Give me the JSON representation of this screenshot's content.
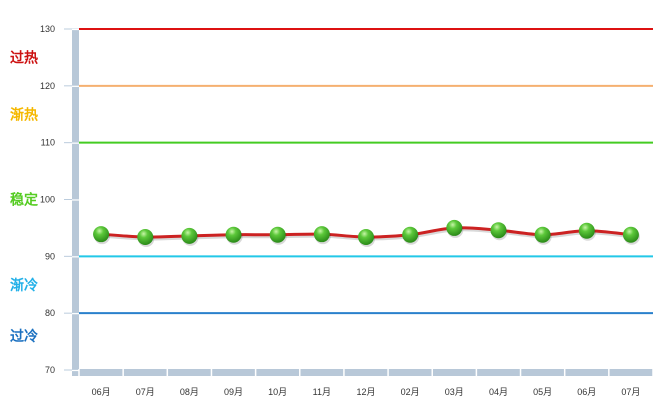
{
  "chart_data": {
    "type": "line",
    "categories": [
      "06月",
      "07月",
      "08月",
      "09月",
      "10月",
      "11月",
      "12月",
      "02月",
      "03月",
      "04月",
      "05月",
      "06月",
      "07月"
    ],
    "values": [
      93.9,
      93.4,
      93.6,
      93.8,
      93.8,
      93.9,
      93.4,
      93.8,
      95.0,
      94.6,
      93.8,
      94.5,
      93.8
    ],
    "ylim": [
      70,
      130
    ],
    "yticks": [
      70,
      80,
      90,
      100,
      110,
      120,
      130
    ],
    "grid": false,
    "line_color": "#cc2222",
    "marker_color": "#3fa82a",
    "thresholds": [
      {
        "value": 130,
        "color": "#dd1111"
      },
      {
        "value": 120,
        "color": "#f5b070"
      },
      {
        "value": 110,
        "color": "#44cc22"
      },
      {
        "value": 90,
        "color": "#22c8e8"
      },
      {
        "value": 80,
        "color": "#2a80cc"
      }
    ],
    "zones": [
      {
        "label": "过热",
        "y": 125,
        "color": "#cc1111"
      },
      {
        "label": "渐热",
        "y": 115,
        "color": "#f5b800"
      },
      {
        "label": "稳定",
        "y": 100,
        "color": "#55cc22"
      },
      {
        "label": "渐冷",
        "y": 85,
        "color": "#22b0e8"
      },
      {
        "label": "过冷",
        "y": 76,
        "color": "#1a70c0"
      }
    ]
  }
}
